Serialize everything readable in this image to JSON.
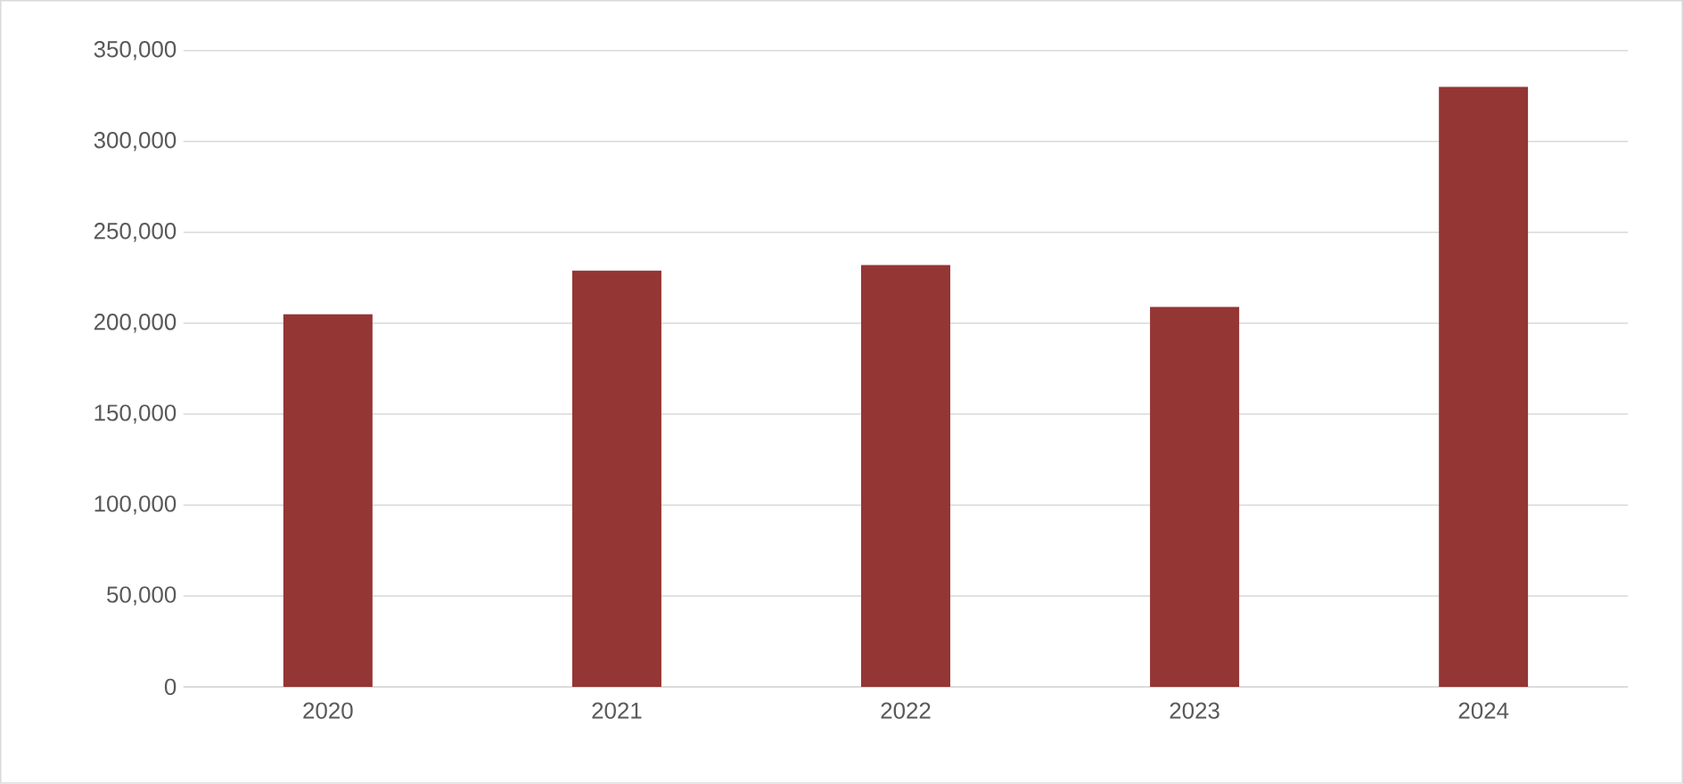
{
  "chart_data": {
    "type": "bar",
    "categories": [
      "2020",
      "2021",
      "2022",
      "2023",
      "2024"
    ],
    "values": [
      205000,
      229000,
      232000,
      209000,
      330000
    ],
    "color": "#943634",
    "ylim": [
      0,
      350000
    ],
    "yticks": [
      {
        "value": 0,
        "label": "0"
      },
      {
        "value": 50000,
        "label": "50,000"
      },
      {
        "value": 100000,
        "label": "100,000"
      },
      {
        "value": 150000,
        "label": "150,000"
      },
      {
        "value": 200000,
        "label": "200,000"
      },
      {
        "value": 250000,
        "label": "250,000"
      },
      {
        "value": 300000,
        "label": "300,000"
      },
      {
        "value": 350000,
        "label": "350,000"
      }
    ],
    "grid": "y"
  }
}
